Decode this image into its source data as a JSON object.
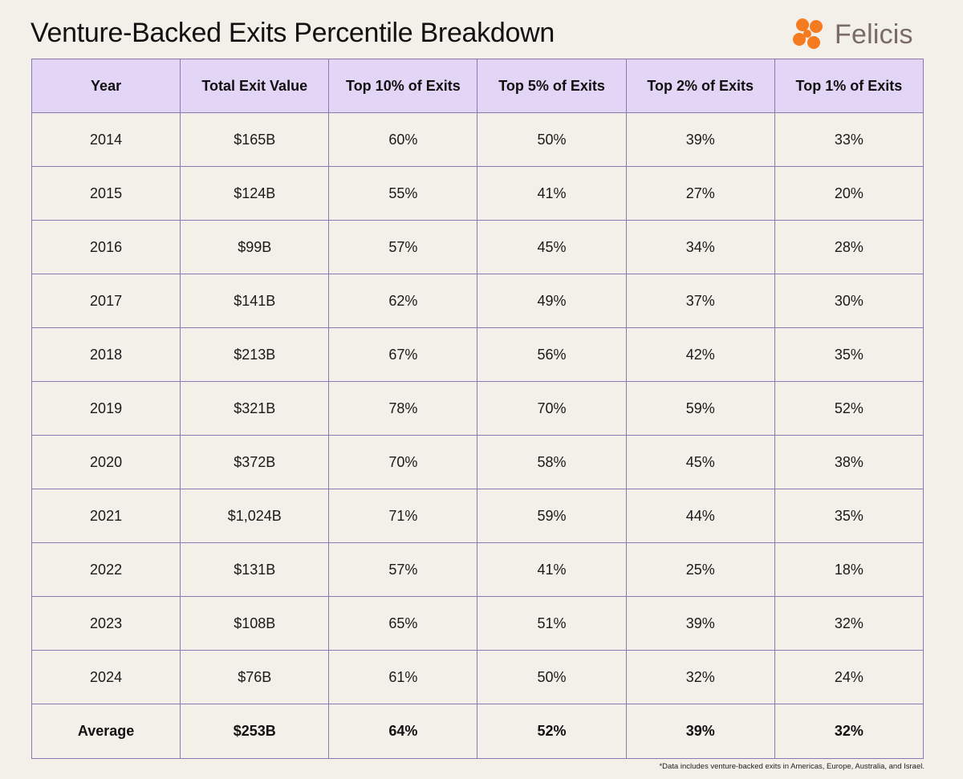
{
  "header": {
    "title": "Venture-Backed Exits Percentile Breakdown",
    "logo_text": "Felicis",
    "logo_color": "#f47b20"
  },
  "chart_data": {
    "type": "table",
    "columns": [
      "Year",
      "Total Exit Value",
      "Top 10% of Exits",
      "Top 5% of Exits",
      "Top 2% of Exits",
      "Top 1% of Exits"
    ],
    "rows": [
      [
        "2014",
        "$165B",
        "60%",
        "50%",
        "39%",
        "33%"
      ],
      [
        "2015",
        "$124B",
        "55%",
        "41%",
        "27%",
        "20%"
      ],
      [
        "2016",
        "$99B",
        "57%",
        "45%",
        "34%",
        "28%"
      ],
      [
        "2017",
        "$141B",
        "62%",
        "49%",
        "37%",
        "30%"
      ],
      [
        "2018",
        "$213B",
        "67%",
        "56%",
        "42%",
        "35%"
      ],
      [
        "2019",
        "$321B",
        "78%",
        "70%",
        "59%",
        "52%"
      ],
      [
        "2020",
        "$372B",
        "70%",
        "58%",
        "45%",
        "38%"
      ],
      [
        "2021",
        "$1,024B",
        "71%",
        "59%",
        "44%",
        "35%"
      ],
      [
        "2022",
        "$131B",
        "57%",
        "41%",
        "25%",
        "18%"
      ],
      [
        "2023",
        "$108B",
        "65%",
        "51%",
        "39%",
        "32%"
      ],
      [
        "2024",
        "$76B",
        "61%",
        "50%",
        "32%",
        "24%"
      ]
    ],
    "summary_row": [
      "Average",
      "$253B",
      "64%",
      "52%",
      "39%",
      "32%"
    ],
    "header_bg": "#e3d5f5",
    "border_color": "#8c78b0"
  },
  "footnote": "*Data includes venture-backed exits in Americas, Europe, Australia, and Israel."
}
